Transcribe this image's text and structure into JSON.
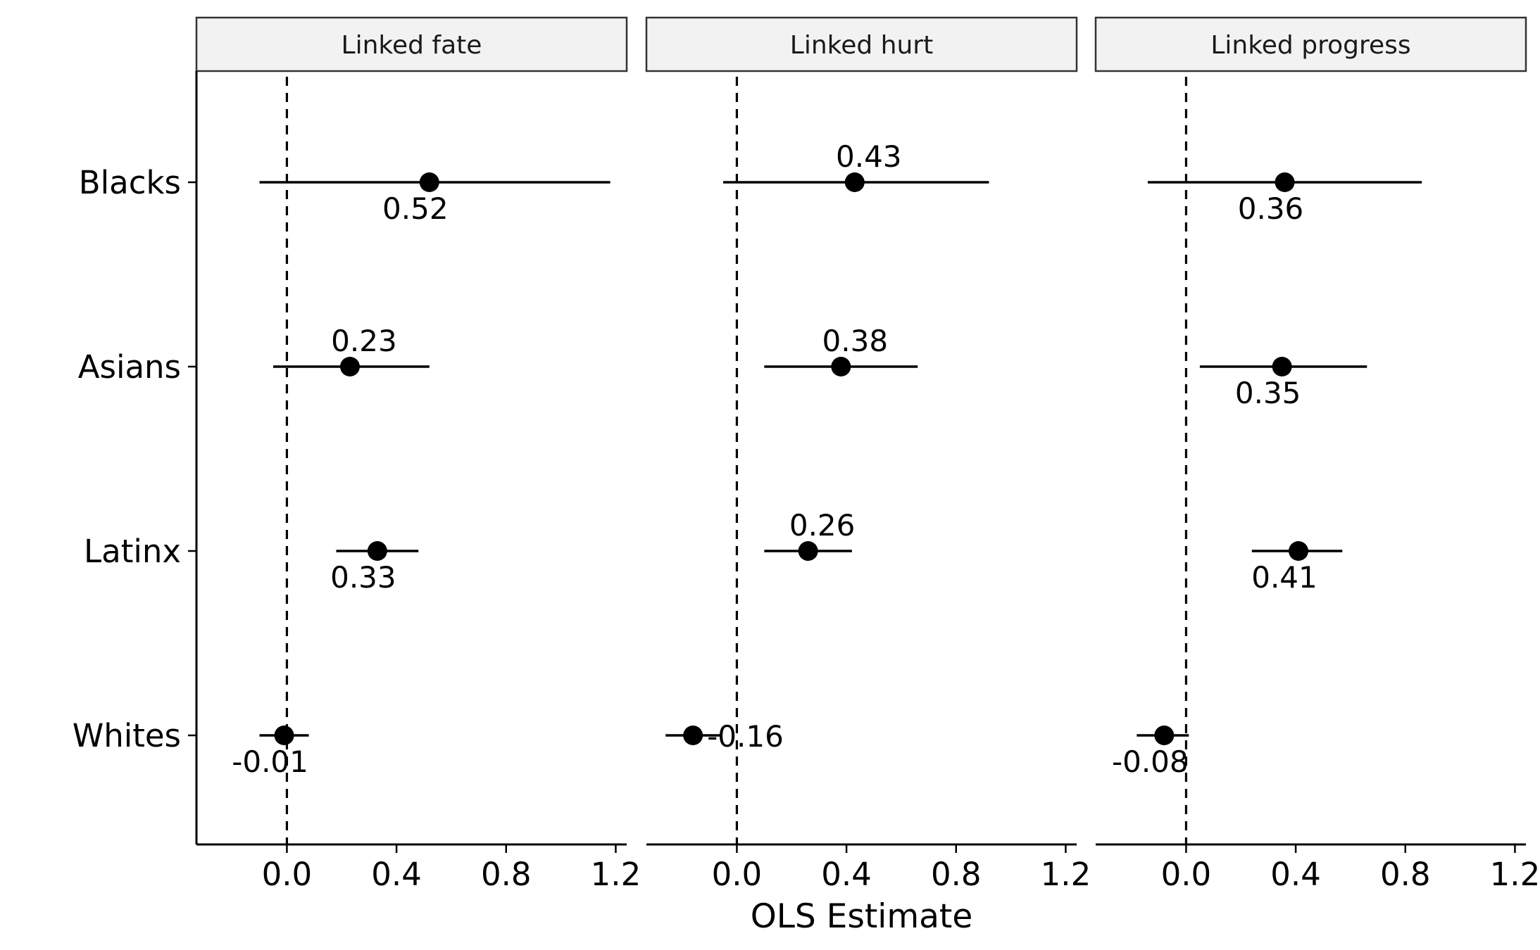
{
  "chart_data": {
    "type": "scatter",
    "subtype": "coefficient-plot-faceted",
    "xlabel": "OLS Estimate",
    "ylabel": "",
    "xlim": [
      -0.33,
      1.24
    ],
    "x_ticks": [
      0.0,
      0.4,
      0.8,
      1.2
    ],
    "x_tick_labels": [
      "0.0",
      "0.4",
      "0.8",
      "1.2"
    ],
    "reference_line": {
      "x": 0,
      "style": "dashed"
    },
    "categories": [
      "Blacks",
      "Asians",
      "Latinx",
      "Whites"
    ],
    "grid": false,
    "legend": "none",
    "panels": [
      {
        "title": "Linked fate",
        "points": [
          {
            "group": "Blacks",
            "estimate": 0.52,
            "ci_low": -0.1,
            "ci_high": 1.18,
            "label": "0.52",
            "label_pos": "below"
          },
          {
            "group": "Asians",
            "estimate": 0.23,
            "ci_low": -0.05,
            "ci_high": 0.52,
            "label": "0.23",
            "label_pos": "above"
          },
          {
            "group": "Latinx",
            "estimate": 0.33,
            "ci_low": 0.18,
            "ci_high": 0.48,
            "label": "0.33",
            "label_pos": "below"
          },
          {
            "group": "Whites",
            "estimate": -0.01,
            "ci_low": -0.1,
            "ci_high": 0.08,
            "label": "-0.01",
            "label_pos": "below"
          }
        ]
      },
      {
        "title": "Linked hurt",
        "points": [
          {
            "group": "Blacks",
            "estimate": 0.43,
            "ci_low": -0.05,
            "ci_high": 0.92,
            "label": "0.43",
            "label_pos": "above"
          },
          {
            "group": "Asians",
            "estimate": 0.38,
            "ci_low": 0.1,
            "ci_high": 0.66,
            "label": "0.38",
            "label_pos": "above"
          },
          {
            "group": "Latinx",
            "estimate": 0.26,
            "ci_low": 0.1,
            "ci_high": 0.42,
            "label": "0.26",
            "label_pos": "above"
          },
          {
            "group": "Whites",
            "estimate": -0.16,
            "ci_low": -0.26,
            "ci_high": -0.06,
            "label": "-0.16",
            "label_pos": "right"
          }
        ]
      },
      {
        "title": "Linked progress",
        "points": [
          {
            "group": "Blacks",
            "estimate": 0.36,
            "ci_low": -0.14,
            "ci_high": 0.86,
            "label": "0.36",
            "label_pos": "below"
          },
          {
            "group": "Asians",
            "estimate": 0.35,
            "ci_low": 0.05,
            "ci_high": 0.66,
            "label": "0.35",
            "label_pos": "below"
          },
          {
            "group": "Latinx",
            "estimate": 0.41,
            "ci_low": 0.24,
            "ci_high": 0.57,
            "label": "0.41",
            "label_pos": "below"
          },
          {
            "group": "Whites",
            "estimate": -0.08,
            "ci_low": -0.18,
            "ci_high": 0.01,
            "label": "-0.08",
            "label_pos": "below"
          }
        ]
      }
    ]
  },
  "colors": {
    "strip_fill": "#f2f2f2",
    "strip_border": "#333333",
    "ink": "#000000",
    "background": "#ffffff"
  }
}
